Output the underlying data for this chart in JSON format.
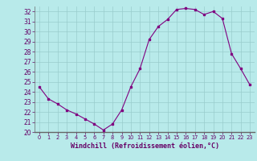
{
  "x": [
    0,
    1,
    2,
    3,
    4,
    5,
    6,
    7,
    8,
    9,
    10,
    11,
    12,
    13,
    14,
    15,
    16,
    17,
    18,
    19,
    20,
    21,
    22,
    23
  ],
  "y": [
    24.5,
    23.3,
    22.8,
    22.2,
    21.8,
    21.3,
    20.8,
    20.2,
    20.8,
    22.2,
    24.5,
    26.3,
    29.2,
    30.5,
    31.2,
    32.2,
    32.3,
    32.2,
    31.7,
    32.0,
    31.3,
    27.8,
    26.3,
    24.7
  ],
  "line_color": "#800080",
  "marker_color": "#800080",
  "bg_color": "#b8eaea",
  "grid_color": "#99cccc",
  "xlabel": "Windchill (Refroidissement éolien,°C)",
  "xlim": [
    -0.5,
    23.5
  ],
  "ylim": [
    20,
    32.5
  ],
  "yticks": [
    20,
    21,
    22,
    23,
    24,
    25,
    26,
    27,
    28,
    29,
    30,
    31,
    32
  ],
  "xticks": [
    0,
    1,
    2,
    3,
    4,
    5,
    6,
    7,
    8,
    9,
    10,
    11,
    12,
    13,
    14,
    15,
    16,
    17,
    18,
    19,
    20,
    21,
    22,
    23
  ],
  "tick_color": "#660066",
  "label_color": "#660066",
  "spine_color": "#666666"
}
